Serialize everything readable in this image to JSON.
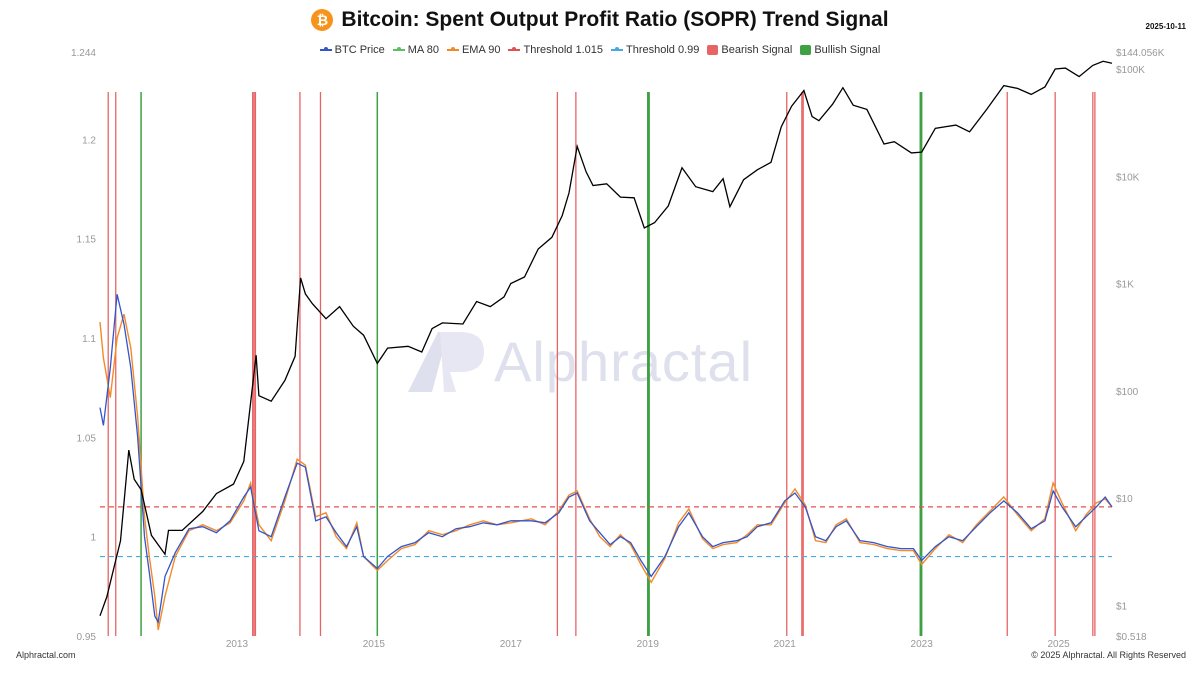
{
  "header": {
    "title": "Bitcoin: Spent Output Profit Ratio (SOPR) Trend Signal",
    "date": "2025-10-11",
    "icon": "bitcoin-icon"
  },
  "legend": [
    {
      "label": "BTC Price",
      "color": "#3355cc",
      "kind": "line"
    },
    {
      "label": "MA 80",
      "color": "#5cc060",
      "kind": "line"
    },
    {
      "label": "EMA 90",
      "color": "#f28a2a",
      "kind": "line"
    },
    {
      "label": "Threshold 1.015",
      "color": "#e05050",
      "kind": "line"
    },
    {
      "label": "Threshold 0.99",
      "color": "#4aa8e0",
      "kind": "line"
    },
    {
      "label": "Bearish Signal",
      "color": "#e86464",
      "kind": "box"
    },
    {
      "label": "Bullish Signal",
      "color": "#3fa043",
      "kind": "box"
    }
  ],
  "watermark": "Alphractal",
  "footer": {
    "left": "Alphractal.com",
    "right": "© 2025 Alphractal. All Rights Reserved"
  },
  "chart_data": {
    "type": "line",
    "title": "Bitcoin: Spent Output Profit Ratio (SOPR) Trend Signal",
    "x_ticks": [
      2013,
      2015,
      2017,
      2019,
      2021,
      2023,
      2025
    ],
    "x_range": [
      2011.0,
      2025.78
    ],
    "y_left": {
      "range": [
        0.95,
        1.244
      ],
      "ticks": [
        0.95,
        1,
        1.05,
        1.1,
        1.15,
        1.2,
        1.244
      ]
    },
    "y_right": {
      "scale": "log",
      "range": [
        0.518,
        144056
      ],
      "ticks": [
        {
          "v": 0.518,
          "label": "$0.518"
        },
        {
          "v": 1,
          "label": "$1"
        },
        {
          "v": 10,
          "label": "$10"
        },
        {
          "v": 100,
          "label": "$100"
        },
        {
          "v": 1000,
          "label": "$1K"
        },
        {
          "v": 10000,
          "label": "$10K"
        },
        {
          "v": 100000,
          "label": "$100K"
        },
        {
          "v": 144056,
          "label": "$144.056K"
        }
      ]
    },
    "thresholds": [
      {
        "name": "Threshold 1.015",
        "value": 1.015,
        "color": "#e05050"
      },
      {
        "name": "Threshold 0.99",
        "value": 0.99,
        "color": "#4aa8e0"
      }
    ],
    "btc_price": [
      [
        2011.0,
        0.8
      ],
      [
        2011.1,
        1.2
      ],
      [
        2011.3,
        4.0
      ],
      [
        2011.42,
        28
      ],
      [
        2011.5,
        15
      ],
      [
        2011.6,
        12
      ],
      [
        2011.75,
        4.5
      ],
      [
        2011.95,
        3.0
      ],
      [
        2012.0,
        5.0
      ],
      [
        2012.2,
        5.0
      ],
      [
        2012.5,
        7.5
      ],
      [
        2012.7,
        11
      ],
      [
        2012.95,
        13.5
      ],
      [
        2013.1,
        22
      ],
      [
        2013.28,
        215
      ],
      [
        2013.32,
        90
      ],
      [
        2013.5,
        80
      ],
      [
        2013.7,
        125
      ],
      [
        2013.85,
        210
      ],
      [
        2013.93,
        1130
      ],
      [
        2014.0,
        800
      ],
      [
        2014.1,
        650
      ],
      [
        2014.3,
        470
      ],
      [
        2014.5,
        610
      ],
      [
        2014.7,
        400
      ],
      [
        2014.85,
        330
      ],
      [
        2015.05,
        180
      ],
      [
        2015.2,
        250
      ],
      [
        2015.5,
        260
      ],
      [
        2015.7,
        230
      ],
      [
        2015.85,
        380
      ],
      [
        2016.0,
        430
      ],
      [
        2016.3,
        420
      ],
      [
        2016.5,
        680
      ],
      [
        2016.7,
        610
      ],
      [
        2016.9,
        750
      ],
      [
        2017.0,
        1000
      ],
      [
        2017.2,
        1150
      ],
      [
        2017.4,
        2100
      ],
      [
        2017.6,
        2700
      ],
      [
        2017.75,
        4300
      ],
      [
        2017.85,
        7000
      ],
      [
        2017.97,
        19000
      ],
      [
        2018.1,
        11000
      ],
      [
        2018.2,
        8200
      ],
      [
        2018.4,
        8500
      ],
      [
        2018.6,
        6400
      ],
      [
        2018.8,
        6300
      ],
      [
        2018.95,
        3300
      ],
      [
        2019.1,
        3700
      ],
      [
        2019.3,
        5300
      ],
      [
        2019.5,
        12000
      ],
      [
        2019.7,
        8000
      ],
      [
        2019.95,
        7200
      ],
      [
        2020.1,
        9500
      ],
      [
        2020.2,
        5200
      ],
      [
        2020.4,
        9300
      ],
      [
        2020.6,
        11500
      ],
      [
        2020.8,
        13500
      ],
      [
        2020.95,
        29000
      ],
      [
        2021.1,
        45000
      ],
      [
        2021.28,
        63000
      ],
      [
        2021.4,
        36000
      ],
      [
        2021.5,
        33000
      ],
      [
        2021.7,
        47000
      ],
      [
        2021.85,
        67000
      ],
      [
        2022.0,
        46000
      ],
      [
        2022.2,
        42000
      ],
      [
        2022.45,
        20000
      ],
      [
        2022.6,
        21000
      ],
      [
        2022.85,
        16500
      ],
      [
        2023.0,
        16800
      ],
      [
        2023.2,
        28000
      ],
      [
        2023.5,
        30000
      ],
      [
        2023.7,
        26000
      ],
      [
        2023.95,
        42000
      ],
      [
        2024.2,
        70000
      ],
      [
        2024.4,
        66000
      ],
      [
        2024.6,
        58000
      ],
      [
        2024.8,
        68000
      ],
      [
        2024.95,
        100000
      ],
      [
        2025.1,
        102000
      ],
      [
        2025.3,
        85000
      ],
      [
        2025.5,
        108000
      ],
      [
        2025.65,
        118000
      ],
      [
        2025.78,
        113000
      ]
    ],
    "sopr_ma80": [
      [
        2011.0,
        1.065
      ],
      [
        2011.05,
        1.056
      ],
      [
        2011.15,
        1.085
      ],
      [
        2011.25,
        1.122
      ],
      [
        2011.35,
        1.107
      ],
      [
        2011.45,
        1.085
      ],
      [
        2011.55,
        1.05
      ],
      [
        2011.65,
        1.0
      ],
      [
        2011.72,
        0.982
      ],
      [
        2011.8,
        0.96
      ],
      [
        2011.85,
        0.957
      ],
      [
        2011.95,
        0.98
      ],
      [
        2012.1,
        0.992
      ],
      [
        2012.3,
        1.004
      ],
      [
        2012.5,
        1.005
      ],
      [
        2012.7,
        1.002
      ],
      [
        2012.9,
        1.008
      ],
      [
        2013.1,
        1.02
      ],
      [
        2013.2,
        1.025
      ],
      [
        2013.32,
        1.003
      ],
      [
        2013.5,
        1.0
      ],
      [
        2013.7,
        1.02
      ],
      [
        2013.88,
        1.037
      ],
      [
        2014.0,
        1.035
      ],
      [
        2014.15,
        1.008
      ],
      [
        2014.3,
        1.01
      ],
      [
        2014.45,
        1.002
      ],
      [
        2014.6,
        0.995
      ],
      [
        2014.75,
        1.005
      ],
      [
        2014.85,
        0.99
      ],
      [
        2015.05,
        0.984
      ],
      [
        2015.2,
        0.99
      ],
      [
        2015.4,
        0.995
      ],
      [
        2015.6,
        0.997
      ],
      [
        2015.8,
        1.002
      ],
      [
        2016.0,
        1.0
      ],
      [
        2016.2,
        1.004
      ],
      [
        2016.4,
        1.005
      ],
      [
        2016.6,
        1.007
      ],
      [
        2016.8,
        1.006
      ],
      [
        2017.0,
        1.008
      ],
      [
        2017.3,
        1.008
      ],
      [
        2017.5,
        1.007
      ],
      [
        2017.7,
        1.012
      ],
      [
        2017.85,
        1.02
      ],
      [
        2017.97,
        1.022
      ],
      [
        2018.15,
        1.008
      ],
      [
        2018.3,
        1.002
      ],
      [
        2018.45,
        0.996
      ],
      [
        2018.6,
        1.0
      ],
      [
        2018.75,
        0.997
      ],
      [
        2018.9,
        0.988
      ],
      [
        2019.05,
        0.98
      ],
      [
        2019.25,
        0.99
      ],
      [
        2019.45,
        1.005
      ],
      [
        2019.6,
        1.012
      ],
      [
        2019.8,
        1.0
      ],
      [
        2019.95,
        0.995
      ],
      [
        2020.1,
        0.997
      ],
      [
        2020.3,
        0.998
      ],
      [
        2020.45,
        1.0
      ],
      [
        2020.6,
        1.005
      ],
      [
        2020.8,
        1.007
      ],
      [
        2021.0,
        1.018
      ],
      [
        2021.15,
        1.022
      ],
      [
        2021.3,
        1.015
      ],
      [
        2021.45,
        1.0
      ],
      [
        2021.6,
        0.998
      ],
      [
        2021.75,
        1.005
      ],
      [
        2021.9,
        1.008
      ],
      [
        2022.1,
        0.998
      ],
      [
        2022.3,
        0.997
      ],
      [
        2022.5,
        0.995
      ],
      [
        2022.7,
        0.994
      ],
      [
        2022.88,
        0.994
      ],
      [
        2023.0,
        0.988
      ],
      [
        2023.2,
        0.995
      ],
      [
        2023.4,
        1.0
      ],
      [
        2023.6,
        0.998
      ],
      [
        2023.8,
        1.005
      ],
      [
        2024.0,
        1.012
      ],
      [
        2024.2,
        1.018
      ],
      [
        2024.4,
        1.012
      ],
      [
        2024.6,
        1.004
      ],
      [
        2024.8,
        1.008
      ],
      [
        2024.92,
        1.023
      ],
      [
        2025.05,
        1.015
      ],
      [
        2025.25,
        1.005
      ],
      [
        2025.4,
        1.01
      ],
      [
        2025.55,
        1.015
      ],
      [
        2025.68,
        1.02
      ],
      [
        2025.78,
        1.015
      ]
    ],
    "sopr_ema90": [
      [
        2011.0,
        1.108
      ],
      [
        2011.05,
        1.09
      ],
      [
        2011.15,
        1.07
      ],
      [
        2011.25,
        1.1
      ],
      [
        2011.35,
        1.112
      ],
      [
        2011.45,
        1.095
      ],
      [
        2011.55,
        1.06
      ],
      [
        2011.65,
        1.01
      ],
      [
        2011.72,
        0.99
      ],
      [
        2011.8,
        0.97
      ],
      [
        2011.85,
        0.953
      ],
      [
        2011.95,
        0.97
      ],
      [
        2012.1,
        0.99
      ],
      [
        2012.3,
        1.003
      ],
      [
        2012.5,
        1.006
      ],
      [
        2012.7,
        1.003
      ],
      [
        2012.9,
        1.007
      ],
      [
        2013.1,
        1.018
      ],
      [
        2013.2,
        1.027
      ],
      [
        2013.32,
        1.006
      ],
      [
        2013.5,
        0.998
      ],
      [
        2013.7,
        1.018
      ],
      [
        2013.88,
        1.039
      ],
      [
        2014.0,
        1.036
      ],
      [
        2014.15,
        1.01
      ],
      [
        2014.3,
        1.012
      ],
      [
        2014.45,
        1.0
      ],
      [
        2014.6,
        0.994
      ],
      [
        2014.75,
        1.007
      ],
      [
        2014.85,
        0.99
      ],
      [
        2015.05,
        0.983
      ],
      [
        2015.2,
        0.988
      ],
      [
        2015.4,
        0.994
      ],
      [
        2015.6,
        0.996
      ],
      [
        2015.8,
        1.003
      ],
      [
        2016.0,
        1.001
      ],
      [
        2016.2,
        1.003
      ],
      [
        2016.4,
        1.006
      ],
      [
        2016.6,
        1.008
      ],
      [
        2016.8,
        1.006
      ],
      [
        2017.0,
        1.007
      ],
      [
        2017.3,
        1.009
      ],
      [
        2017.5,
        1.006
      ],
      [
        2017.7,
        1.013
      ],
      [
        2017.85,
        1.021
      ],
      [
        2017.97,
        1.023
      ],
      [
        2018.15,
        1.009
      ],
      [
        2018.3,
        1.0
      ],
      [
        2018.45,
        0.995
      ],
      [
        2018.6,
        1.001
      ],
      [
        2018.75,
        0.996
      ],
      [
        2018.9,
        0.986
      ],
      [
        2019.05,
        0.977
      ],
      [
        2019.25,
        0.989
      ],
      [
        2019.45,
        1.007
      ],
      [
        2019.6,
        1.014
      ],
      [
        2019.8,
        0.999
      ],
      [
        2019.95,
        0.994
      ],
      [
        2020.1,
        0.996
      ],
      [
        2020.3,
        0.997
      ],
      [
        2020.45,
        1.001
      ],
      [
        2020.6,
        1.006
      ],
      [
        2020.8,
        1.006
      ],
      [
        2021.0,
        1.017
      ],
      [
        2021.15,
        1.024
      ],
      [
        2021.3,
        1.016
      ],
      [
        2021.45,
        0.998
      ],
      [
        2021.6,
        0.997
      ],
      [
        2021.75,
        1.006
      ],
      [
        2021.9,
        1.009
      ],
      [
        2022.1,
        0.997
      ],
      [
        2022.3,
        0.996
      ],
      [
        2022.5,
        0.994
      ],
      [
        2022.7,
        0.993
      ],
      [
        2022.88,
        0.993
      ],
      [
        2023.0,
        0.986
      ],
      [
        2023.2,
        0.994
      ],
      [
        2023.4,
        1.001
      ],
      [
        2023.6,
        0.997
      ],
      [
        2023.8,
        1.006
      ],
      [
        2024.0,
        1.013
      ],
      [
        2024.2,
        1.02
      ],
      [
        2024.4,
        1.011
      ],
      [
        2024.6,
        1.003
      ],
      [
        2024.8,
        1.009
      ],
      [
        2024.92,
        1.027
      ],
      [
        2025.05,
        1.017
      ],
      [
        2025.25,
        1.003
      ],
      [
        2025.4,
        1.011
      ],
      [
        2025.55,
        1.017
      ],
      [
        2025.68,
        1.019
      ],
      [
        2025.78,
        1.015
      ]
    ],
    "bearish_signals": [
      2011.12,
      2011.23,
      2013.23,
      2013.25,
      2013.27,
      2013.92,
      2014.22,
      2017.68,
      2017.95,
      2021.03,
      2021.25,
      2021.27,
      2024.25,
      2024.95,
      2025.5,
      2025.53
    ],
    "bullish_signals": [
      2011.6,
      2015.05,
      2019.0,
      2019.02,
      2022.98,
      2023.0
    ]
  }
}
